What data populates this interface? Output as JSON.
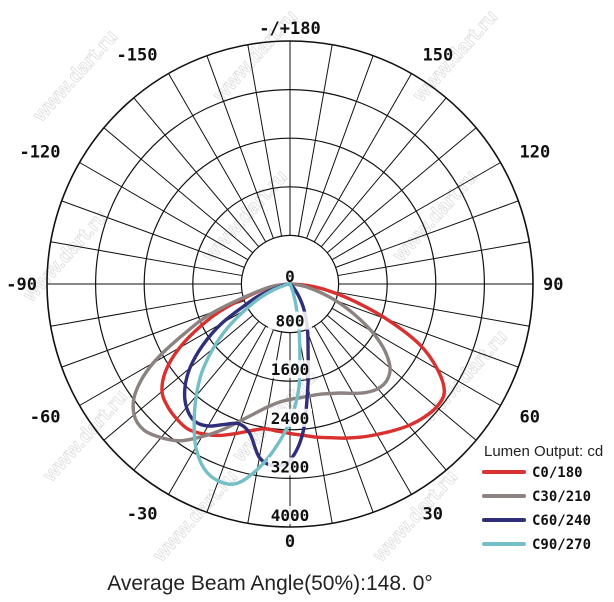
{
  "chart_data": {
    "type": "polar",
    "title": "",
    "caption": "Average Beam Angle(50%):148. 0°",
    "angle_labels": [
      {
        "angle": 180,
        "text": "-/+180"
      },
      {
        "angle": -150,
        "text": "-150"
      },
      {
        "angle": 150,
        "text": "150"
      },
      {
        "angle": -120,
        "text": "-120"
      },
      {
        "angle": 120,
        "text": "120"
      },
      {
        "angle": -90,
        "text": "-90"
      },
      {
        "angle": 90,
        "text": "90"
      },
      {
        "angle": -60,
        "text": "-60"
      },
      {
        "angle": 60,
        "text": "60"
      },
      {
        "angle": -30,
        "text": "-30"
      },
      {
        "angle": 30,
        "text": "30"
      },
      {
        "angle": 0,
        "text": "0"
      }
    ],
    "radial_ticks": [
      0,
      800,
      1600,
      2400,
      3200,
      4000
    ],
    "radial_tick_labels": [
      "0",
      "800",
      "1600",
      "2400",
      "3200",
      "4000"
    ],
    "rmax": 4000,
    "legend_title": "Lumen Output: cd",
    "series": [
      {
        "name": "C0/180",
        "color": "#d93030",
        "points": [
          [
            -90,
            0
          ],
          [
            -80,
            380
          ],
          [
            -70,
            1100
          ],
          [
            -65,
            1600
          ],
          [
            -60,
            2100
          ],
          [
            -55,
            2500
          ],
          [
            -50,
            2750
          ],
          [
            -45,
            2850
          ],
          [
            -40,
            2900
          ],
          [
            -35,
            2920
          ],
          [
            -30,
            2850
          ],
          [
            -25,
            2750
          ],
          [
            -20,
            2620
          ],
          [
            -15,
            2500
          ],
          [
            -10,
            2420
          ],
          [
            -5,
            2430
          ],
          [
            0,
            2460
          ],
          [
            5,
            2500
          ],
          [
            10,
            2560
          ],
          [
            15,
            2620
          ],
          [
            20,
            2700
          ],
          [
            25,
            2780
          ],
          [
            30,
            2860
          ],
          [
            35,
            2950
          ],
          [
            40,
            3040
          ],
          [
            45,
            3110
          ],
          [
            50,
            3150
          ],
          [
            55,
            3100
          ],
          [
            60,
            2800
          ],
          [
            65,
            2350
          ],
          [
            70,
            1700
          ],
          [
            75,
            1100
          ],
          [
            80,
            650
          ],
          [
            85,
            300
          ],
          [
            90,
            0
          ]
        ]
      },
      {
        "name": "C30/210",
        "color": "#8c8280",
        "points": [
          [
            -90,
            0
          ],
          [
            -80,
            400
          ],
          [
            -70,
            1300
          ],
          [
            -65,
            1900
          ],
          [
            -60,
            2600
          ],
          [
            -55,
            3100
          ],
          [
            -50,
            3350
          ],
          [
            -45,
            3400
          ],
          [
            -40,
            3300
          ],
          [
            -35,
            3150
          ],
          [
            -30,
            2900
          ],
          [
            -25,
            2650
          ],
          [
            -20,
            2400
          ],
          [
            -15,
            2200
          ],
          [
            -10,
            2050
          ],
          [
            -5,
            1950
          ],
          [
            0,
            1900
          ],
          [
            5,
            1880
          ],
          [
            10,
            1870
          ],
          [
            15,
            1880
          ],
          [
            20,
            1920
          ],
          [
            25,
            1980
          ],
          [
            30,
            2080
          ],
          [
            35,
            2180
          ],
          [
            40,
            2250
          ],
          [
            45,
            2250
          ],
          [
            50,
            2150
          ],
          [
            55,
            1900
          ],
          [
            60,
            1550
          ],
          [
            65,
            1150
          ],
          [
            70,
            800
          ],
          [
            75,
            500
          ],
          [
            80,
            270
          ],
          [
            85,
            110
          ],
          [
            90,
            0
          ]
        ]
      },
      {
        "name": "C60/240",
        "color": "#2f2f7a",
        "points": [
          [
            -90,
            0
          ],
          [
            -80,
            100
          ],
          [
            -70,
            500
          ],
          [
            -65,
            800
          ],
          [
            -60,
            1300
          ],
          [
            -55,
            1750
          ],
          [
            -50,
            2150
          ],
          [
            -45,
            2450
          ],
          [
            -40,
            2650
          ],
          [
            -35,
            2750
          ],
          [
            -30,
            2700
          ],
          [
            -25,
            2550
          ],
          [
            -20,
            2450
          ],
          [
            -15,
            2550
          ],
          [
            -10,
            2900
          ],
          [
            -5,
            3000
          ],
          [
            0,
            2900
          ],
          [
            5,
            2450
          ],
          [
            10,
            1700
          ],
          [
            15,
            1150
          ],
          [
            20,
            850
          ],
          [
            25,
            620
          ],
          [
            30,
            430
          ],
          [
            35,
            270
          ],
          [
            40,
            150
          ],
          [
            45,
            70
          ],
          [
            50,
            20
          ],
          [
            60,
            0
          ],
          [
            90,
            0
          ]
        ]
      },
      {
        "name": "C90/270",
        "color": "#74bfc6",
        "points": [
          [
            -90,
            0
          ],
          [
            -80,
            60
          ],
          [
            -70,
            300
          ],
          [
            -65,
            550
          ],
          [
            -60,
            850
          ],
          [
            -55,
            1250
          ],
          [
            -50,
            1650
          ],
          [
            -45,
            2050
          ],
          [
            -40,
            2400
          ],
          [
            -35,
            2750
          ],
          [
            -30,
            3100
          ],
          [
            -25,
            3350
          ],
          [
            -20,
            3450
          ],
          [
            -15,
            3400
          ],
          [
            -10,
            3100
          ],
          [
            -5,
            2700
          ],
          [
            0,
            2250
          ],
          [
            5,
            1700
          ],
          [
            10,
            900
          ],
          [
            15,
            400
          ],
          [
            20,
            150
          ],
          [
            25,
            40
          ],
          [
            30,
            0
          ],
          [
            90,
            0
          ]
        ]
      }
    ]
  }
}
